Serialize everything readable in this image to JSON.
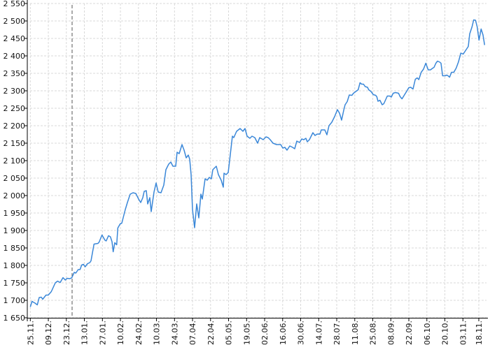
{
  "chart_data": {
    "type": "line",
    "title": "",
    "xlabel": "",
    "ylabel": "",
    "ylim": [
      1650,
      2550
    ],
    "yticks": [
      "1 650",
      "1 700",
      "1 750",
      "1 800",
      "1 850",
      "1 900",
      "1 950",
      "2 000",
      "2 050",
      "2 100",
      "2 150",
      "2 200",
      "2 250",
      "2 300",
      "2 350",
      "2 400",
      "2 450",
      "2 500",
      "2 550"
    ],
    "xticks": [
      "25.11.",
      "09.12.",
      "23.12.",
      "13.01.",
      "27.01.",
      "10.02.",
      "24.02.",
      "10.03.",
      "24.03.",
      "07.04.",
      "22.04.",
      "05.05.",
      "19.05.",
      "02.06.",
      "16.06.",
      "30.06.",
      "14.07.",
      "28.07.",
      "11.08.",
      "25.08.",
      "08.09.",
      "22.09.",
      "06.10.",
      "20.10.",
      "03.11.",
      "18.11."
    ],
    "grid": true,
    "marker_line": {
      "style": "dashed",
      "position_after": "23.12."
    },
    "colors": {
      "line": "#3a87d8",
      "grid": "#d9d9d9",
      "marker": "#555555"
    },
    "series": [
      {
        "values": [
          1681,
          1697,
          1692,
          1687,
          1708,
          1709,
          1703,
          1715,
          1715,
          1725,
          1750,
          1755,
          1751,
          1765,
          1758,
          1763,
          1762,
          1765,
          1780,
          1778,
          1788,
          1788,
          1801,
          1803,
          1796,
          1805,
          1808,
          1813,
          1861,
          1863,
          1867,
          1887,
          1872,
          1870,
          1885,
          1882,
          1868,
          1839,
          1865,
          1859,
          1907,
          1919,
          1921,
          1960,
          1980,
          2004,
          2008,
          2006,
          1990,
          1980,
          1994,
          2012,
          2014,
          1976,
          1994,
          1954,
          2010,
          2036,
          2010,
          2008,
          2030,
          2074,
          2090,
          2096,
          2084,
          2084,
          2124,
          2120,
          2146,
          2130,
          2108,
          2116,
          2104,
          2060,
          1960,
          1908,
          1976,
          1936,
          2004,
          1990,
          2048,
          2044,
          2052,
          2048,
          2074,
          2084,
          2060,
          2044,
          2024,
          2064,
          2060,
          2066,
          2100,
          2170,
          2166,
          2184,
          2192,
          2184,
          2192,
          2170,
          2164,
          2170,
          2166,
          2150,
          2166,
          2160,
          2168,
          2166,
          2160,
          2150,
          2146,
          2146,
          2136,
          2138,
          2130,
          2142,
          2138,
          2134,
          2156,
          2152,
          2162,
          2160,
          2164,
          2154,
          2160,
          2180,
          2172,
          2176,
          2176,
          2188,
          2188,
          2174,
          2200,
          2210,
          2226,
          2246,
          2236,
          2216,
          2244,
          2260,
          2269,
          2288,
          2287,
          2293,
          2298,
          2303,
          2323,
          2319,
          2319,
          2312,
          2310,
          2303,
          2298,
          2289,
          2287,
          2283,
          2270,
          2273,
          2260,
          2263,
          2285,
          2285,
          2282,
          2293,
          2295,
          2293,
          2283,
          2277,
          2290,
          2301,
          2309,
          2310,
          2305,
          2333,
          2337,
          2332,
          2353,
          2362,
          2379,
          2360,
          2360,
          2365,
          2367,
          2379,
          2385,
          2382,
          2379,
          2343,
          2343,
          2345,
          2343,
          2339,
          2353,
          2353,
          2365,
          2383,
          2408,
          2405,
          2415,
          2427,
          2463,
          2483,
          2503,
          2502,
          2483,
          2445,
          2477,
          2460,
          2431
        ]
      }
    ]
  }
}
